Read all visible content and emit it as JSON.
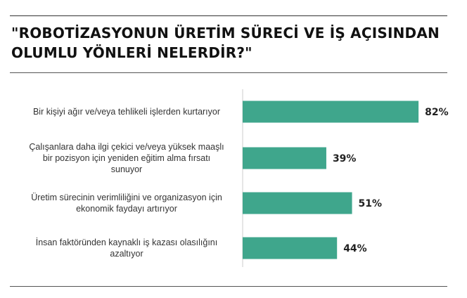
{
  "chart_data": {
    "type": "bar",
    "orientation": "horizontal",
    "title": "\"ROBOTİZASYONUN ÜRETİM SÜRECİ VE İŞ AÇISINDAN OLUMLU YÖNLERİ NELERDİR?\"",
    "categories": [
      [
        "Bir kişiyi ağır ve/veya tehlikeli işlerden kurtarıyor"
      ],
      [
        "Çalışanlara daha ilgi çekici ve/veya yüksek maaşlı",
        "bir pozisyon için yeniden eğitim alma fırsatı",
        "sunuyor"
      ],
      [
        "Üretim sürecinin verimliliğini ve organizasyon için",
        "ekonomik faydayı artırıyor"
      ],
      [
        "İnsan faktöründen kaynaklı iş kazası olasılığını",
        "azaltıyor"
      ]
    ],
    "values": [
      82,
      39,
      51,
      44
    ],
    "value_labels": [
      "82%",
      "39%",
      "51%",
      "44%"
    ],
    "xlim": [
      0,
      100
    ],
    "bar_color": "#3fa68c",
    "axis_color": "#cccccc",
    "grid": false,
    "legend": "none"
  }
}
